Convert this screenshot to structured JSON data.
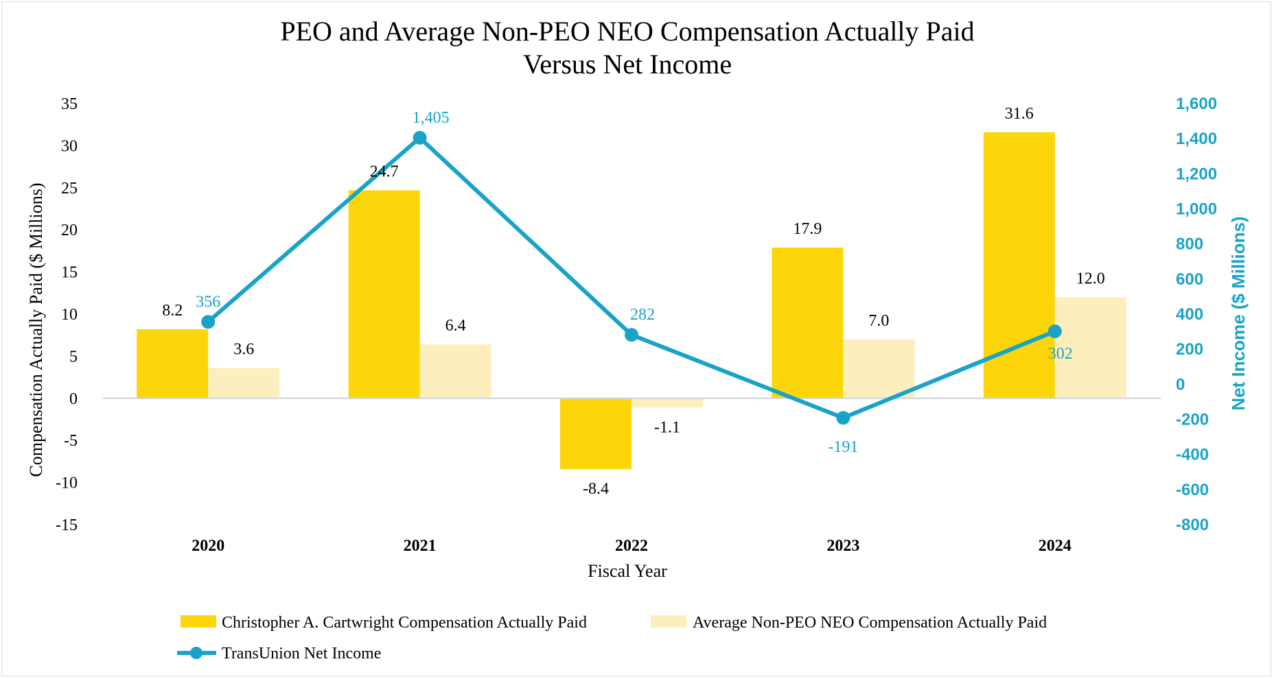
{
  "chart_data": {
    "type": "bar",
    "title_lines": [
      "PEO and Average Non-PEO NEO Compensation Actually Paid",
      "Versus Net Income"
    ],
    "xlabel": "Fiscal Year",
    "ylabel": "Compensation Actually Paid ($ Millions)",
    "y2label": "Net Income ($ Millions)",
    "categories": [
      "2020",
      "2021",
      "2022",
      "2023",
      "2024"
    ],
    "ylim": [
      -15,
      35
    ],
    "yticks": [
      35,
      30,
      25,
      20,
      15,
      10,
      5,
      0,
      -5,
      -10,
      -15
    ],
    "y2lim": [
      -800,
      1600
    ],
    "y2ticks": [
      "1,600",
      "1,400",
      "1,200",
      "1,000",
      "800",
      "600",
      "400",
      "200",
      "0",
      "-200",
      "-400",
      "-600",
      "-800"
    ],
    "y2tick_values": [
      1600,
      1400,
      1200,
      1000,
      800,
      600,
      400,
      200,
      0,
      -200,
      -400,
      -600,
      -800
    ],
    "series": [
      {
        "name": "Christopher A. Cartwright Compensation Actually Paid",
        "kind": "bar",
        "axis": "left",
        "color": "#fcd60a",
        "values": [
          8.2,
          24.7,
          -8.4,
          17.9,
          31.6
        ],
        "labels": [
          "8.2",
          "24.7",
          "-8.4",
          "17.9",
          "31.6"
        ]
      },
      {
        "name": "Average Non-PEO NEO Compensation Actually Paid",
        "kind": "bar",
        "axis": "left",
        "color": "#fdefbd",
        "values": [
          3.6,
          6.4,
          -1.1,
          7.0,
          12.0
        ],
        "labels": [
          "3.6",
          "6.4",
          "-1.1",
          "7.0",
          "12.0"
        ]
      },
      {
        "name": "TransUnion Net Income",
        "kind": "line",
        "axis": "right",
        "color": "#1aa3c8",
        "values": [
          356,
          1405,
          282,
          -191,
          302
        ],
        "labels": [
          "356",
          "1,405",
          "282",
          "-191",
          "302"
        ]
      }
    ],
    "legend_position": "bottom",
    "grid": false
  }
}
